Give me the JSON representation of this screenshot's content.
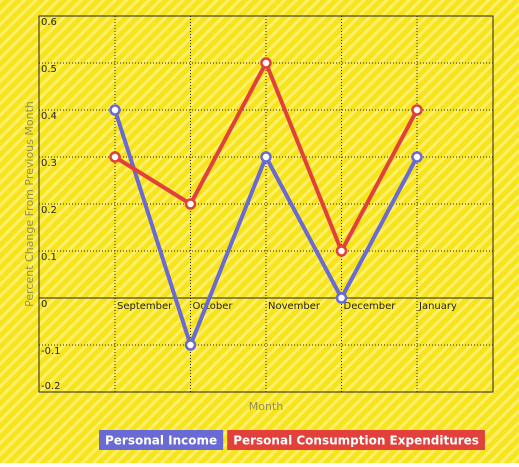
{
  "chart_data": {
    "type": "line",
    "x_label": "Month",
    "y_label": "Percent Change From Previous Month",
    "categories": [
      "September",
      "October",
      "November",
      "December",
      "January"
    ],
    "series": [
      {
        "name": "Personal Income",
        "color": "#6a6ad4",
        "values": [
          0.4,
          -0.1,
          0.3,
          0,
          0.3
        ]
      },
      {
        "name": "Personal Consumption Expenditures",
        "color": "#e2403a",
        "values": [
          0.3,
          0.2,
          0.5,
          0.1,
          0.4
        ]
      }
    ],
    "ylim": [
      -0.2,
      0.6
    ],
    "yticks": [
      -0.2,
      -0.1,
      0,
      0.1,
      0.2,
      0.3,
      0.4,
      0.5,
      0.6
    ],
    "grid": true,
    "legend": "bottom"
  }
}
